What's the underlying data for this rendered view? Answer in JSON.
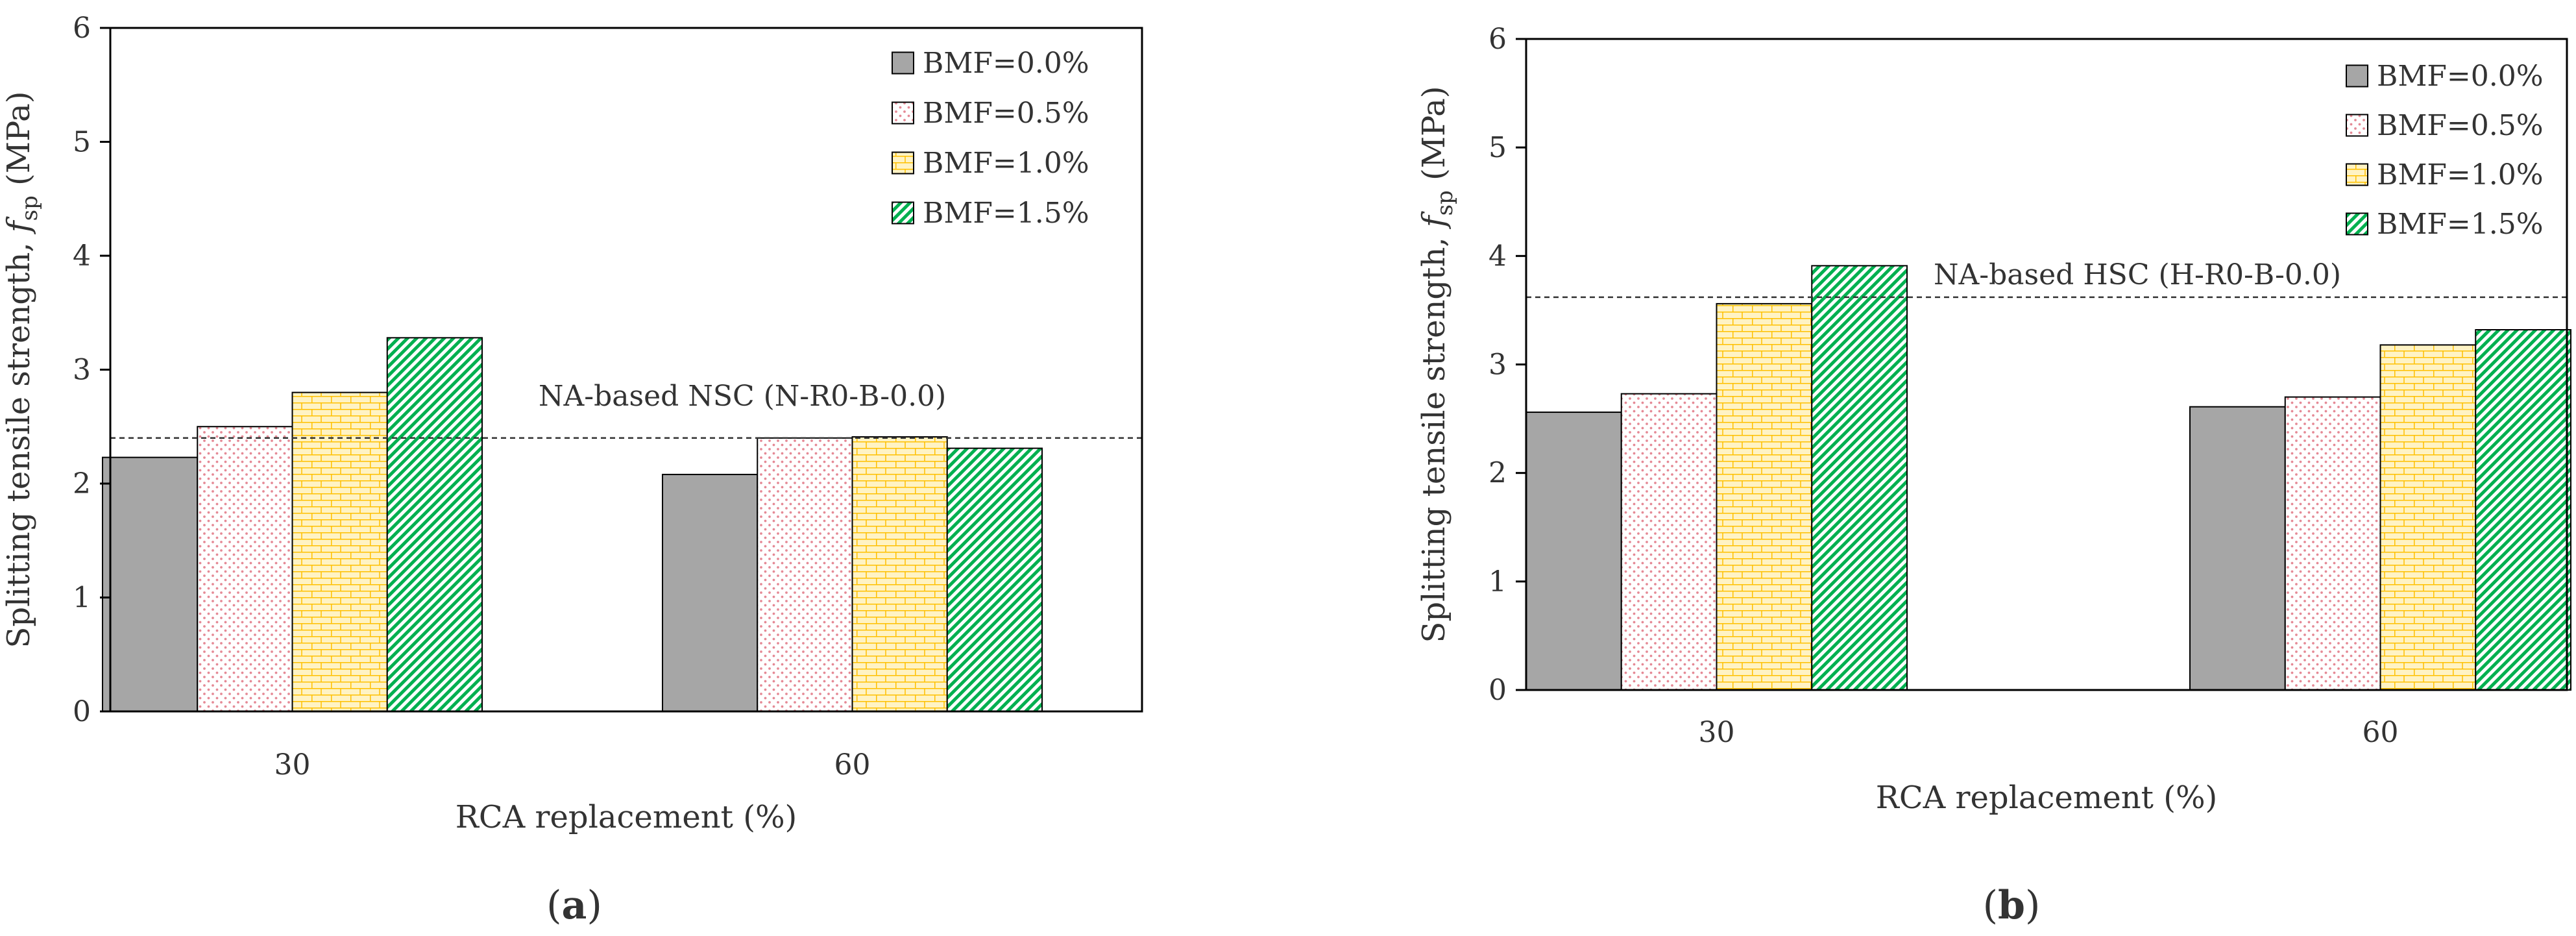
{
  "figure": {
    "panels": [
      {
        "caption_letter": "a",
        "caption": "(a)"
      },
      {
        "caption_letter": "b",
        "caption": "(b)"
      }
    ]
  },
  "chart_data": [
    {
      "type": "bar",
      "panel": "a",
      "categories": [
        "30",
        "60"
      ],
      "series": [
        {
          "name": "BMF=0.0%",
          "values": [
            2.23,
            2.08
          ],
          "color": "#a6a6a6",
          "pattern": "solid"
        },
        {
          "name": "BMF=0.5%",
          "values": [
            2.5,
            2.4
          ],
          "color": "#f4b6be",
          "pattern": "dots"
        },
        {
          "name": "BMF=1.0%",
          "values": [
            2.8,
            2.41
          ],
          "color": "#ffc000",
          "pattern": "bricks"
        },
        {
          "name": "BMF=1.5%",
          "values": [
            3.28,
            2.31
          ],
          "color": "#00b050",
          "pattern": "diagonal"
        }
      ],
      "reference_line": {
        "label": "NA-based NSC (N-R0-B-0.0)",
        "value": 2.4
      },
      "xlabel": "RCA replacement (%)",
      "ylabel": {
        "main": "Splitting tensile strength, ",
        "symbol": "f",
        "subscript": "sp",
        "unit": " (MPa)"
      },
      "ylim": [
        0,
        6
      ],
      "yticks": [
        "0",
        "1",
        "2",
        "3",
        "4",
        "5",
        "6"
      ],
      "legend_position": "top-right",
      "grid": false
    },
    {
      "type": "bar",
      "panel": "b",
      "categories": [
        "30",
        "60"
      ],
      "series": [
        {
          "name": "BMF=0.0%",
          "values": [
            2.56,
            2.61
          ],
          "color": "#a6a6a6",
          "pattern": "solid"
        },
        {
          "name": "BMF=0.5%",
          "values": [
            2.73,
            2.7
          ],
          "color": "#f4b6be",
          "pattern": "dots"
        },
        {
          "name": "BMF=1.0%",
          "values": [
            3.56,
            3.18
          ],
          "color": "#ffc000",
          "pattern": "bricks"
        },
        {
          "name": "BMF=1.5%",
          "values": [
            3.91,
            3.32
          ],
          "color": "#00b050",
          "pattern": "diagonal"
        }
      ],
      "reference_line": {
        "label": "NA-based HSC (H-R0-B-0.0)",
        "value": 3.62
      },
      "xlabel": "RCA replacement (%)",
      "ylabel": {
        "main": "Splitting tensile strength, ",
        "symbol": "f",
        "subscript": "sp",
        "unit": " (MPa)"
      },
      "ylim": [
        0,
        6
      ],
      "yticks": [
        "0",
        "1",
        "2",
        "3",
        "4",
        "5",
        "6"
      ],
      "legend_position": "top-right",
      "grid": false
    }
  ]
}
